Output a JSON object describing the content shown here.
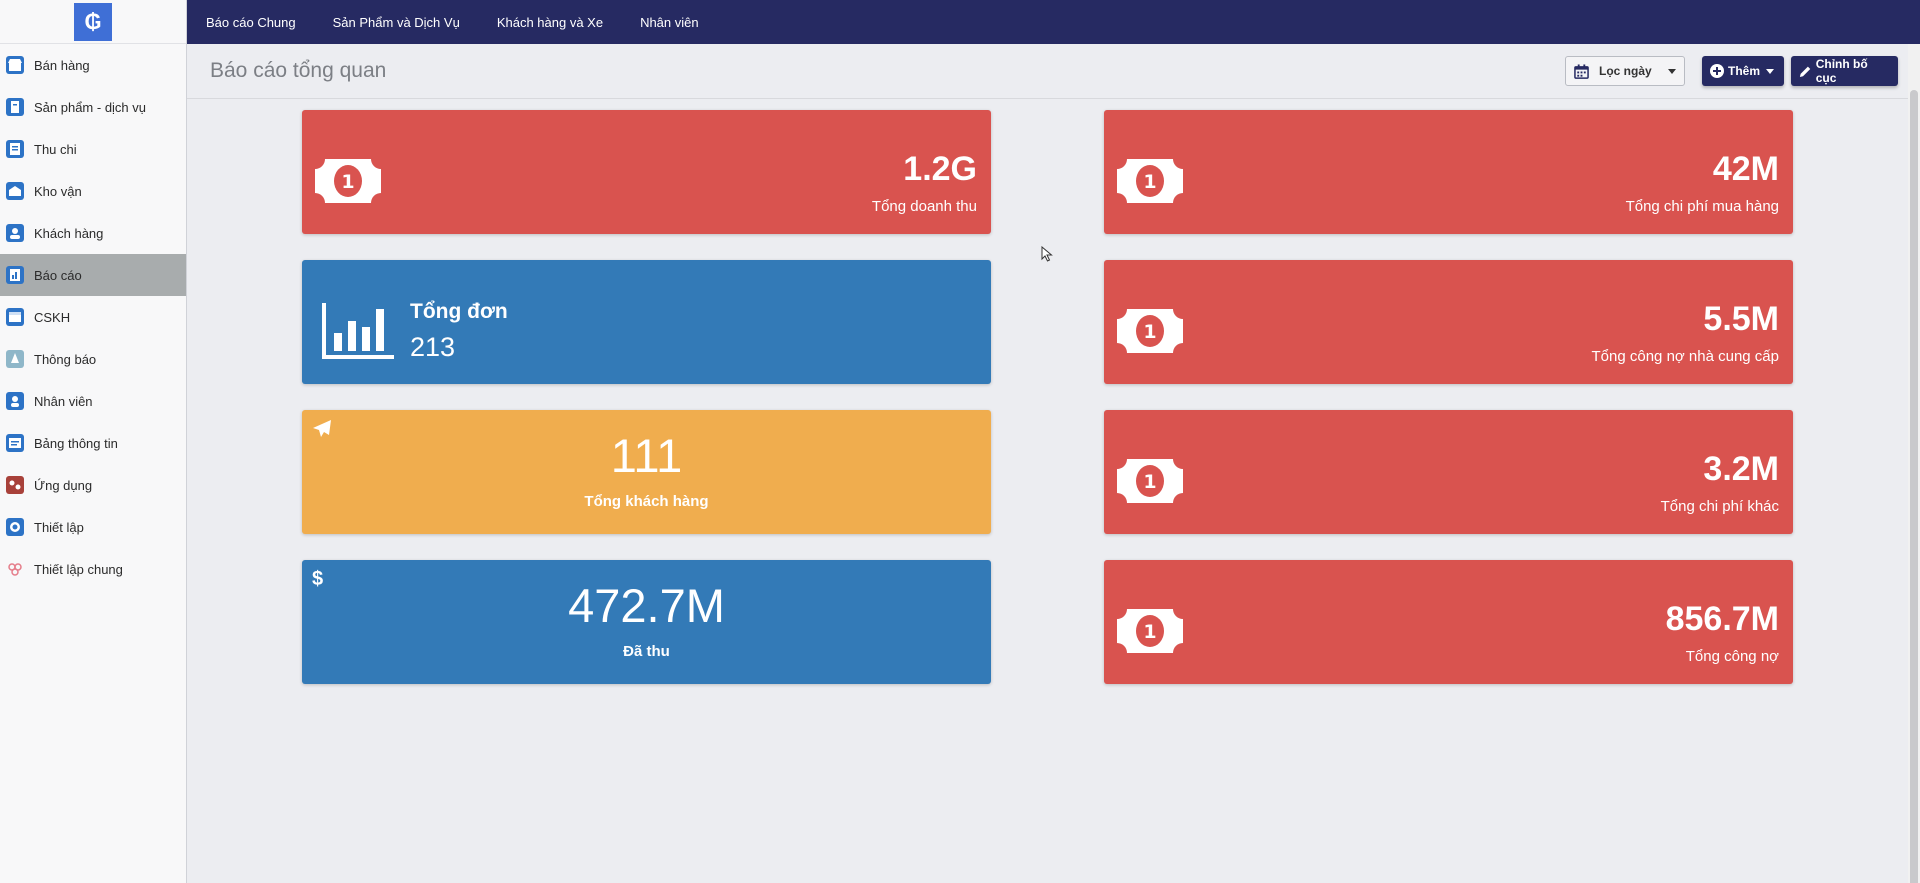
{
  "app": {
    "logo_glyph": "₲"
  },
  "sidebar": {
    "items": [
      {
        "label": "Bán hàng",
        "icon": "store-icon",
        "color": "#2d73c6"
      },
      {
        "label": "Sản phẩm - dịch vụ",
        "icon": "product-icon",
        "color": "#2d73c6"
      },
      {
        "label": "Thu chi",
        "icon": "receipt-icon",
        "color": "#2d73c6"
      },
      {
        "label": "Kho vận",
        "icon": "warehouse-icon",
        "color": "#2d73c6"
      },
      {
        "label": "Khách hàng",
        "icon": "customer-icon",
        "color": "#2d73c6"
      },
      {
        "label": "Báo cáo",
        "icon": "report-icon",
        "color": "#2d73c6",
        "active": true
      },
      {
        "label": "CSKH",
        "icon": "support-icon",
        "color": "#2d73c6"
      },
      {
        "label": "Thông báo",
        "icon": "notification-icon",
        "color": "#8fb7c9"
      },
      {
        "label": "Nhân viên",
        "icon": "employee-icon",
        "color": "#2d73c6"
      },
      {
        "label": "Bảng thông tin",
        "icon": "board-icon",
        "color": "#2d73c6"
      },
      {
        "label": "Ứng dụng",
        "icon": "apps-icon",
        "color": "#a8413a"
      },
      {
        "label": "Thiết lập",
        "icon": "settings-icon",
        "color": "#2d73c6"
      },
      {
        "label": "Thiết lập chung",
        "icon": "general-settings-icon",
        "color": "#e57d8a"
      }
    ]
  },
  "topnav": {
    "items": [
      "Báo cáo Chung",
      "Sản Phẩm và Dịch Vụ",
      "Khách hàng và Xe",
      "Nhân viên"
    ]
  },
  "header": {
    "title": "Báo cáo tổng quan",
    "date_filter_label": "Lọc ngày",
    "add_label": "Thêm",
    "edit_layout_label": "Chỉnh bố cục"
  },
  "cards": {
    "revenue": {
      "value": "1.2G",
      "label": "Tổng doanh thu"
    },
    "purchase_cost": {
      "value": "42M",
      "label": "Tổng chi phí mua hàng"
    },
    "orders": {
      "title": "Tổng đơn",
      "value": "213"
    },
    "supplier_debt": {
      "value": "5.5M",
      "label": "Tổng công nợ nhà cung cấp"
    },
    "customers": {
      "value": "111",
      "label": "Tổng khách hàng"
    },
    "other_cost": {
      "value": "3.2M",
      "label": "Tổng chi phí khác"
    },
    "collected": {
      "value": "472.7M",
      "label": "Đã thu",
      "icon_glyph": "$"
    },
    "total_debt": {
      "value": "856.7M",
      "label": "Tổng công nợ"
    }
  },
  "colors": {
    "nav": "#262a62",
    "red": "#d9534f",
    "blue": "#337ab7",
    "orange": "#f0ad4e"
  }
}
